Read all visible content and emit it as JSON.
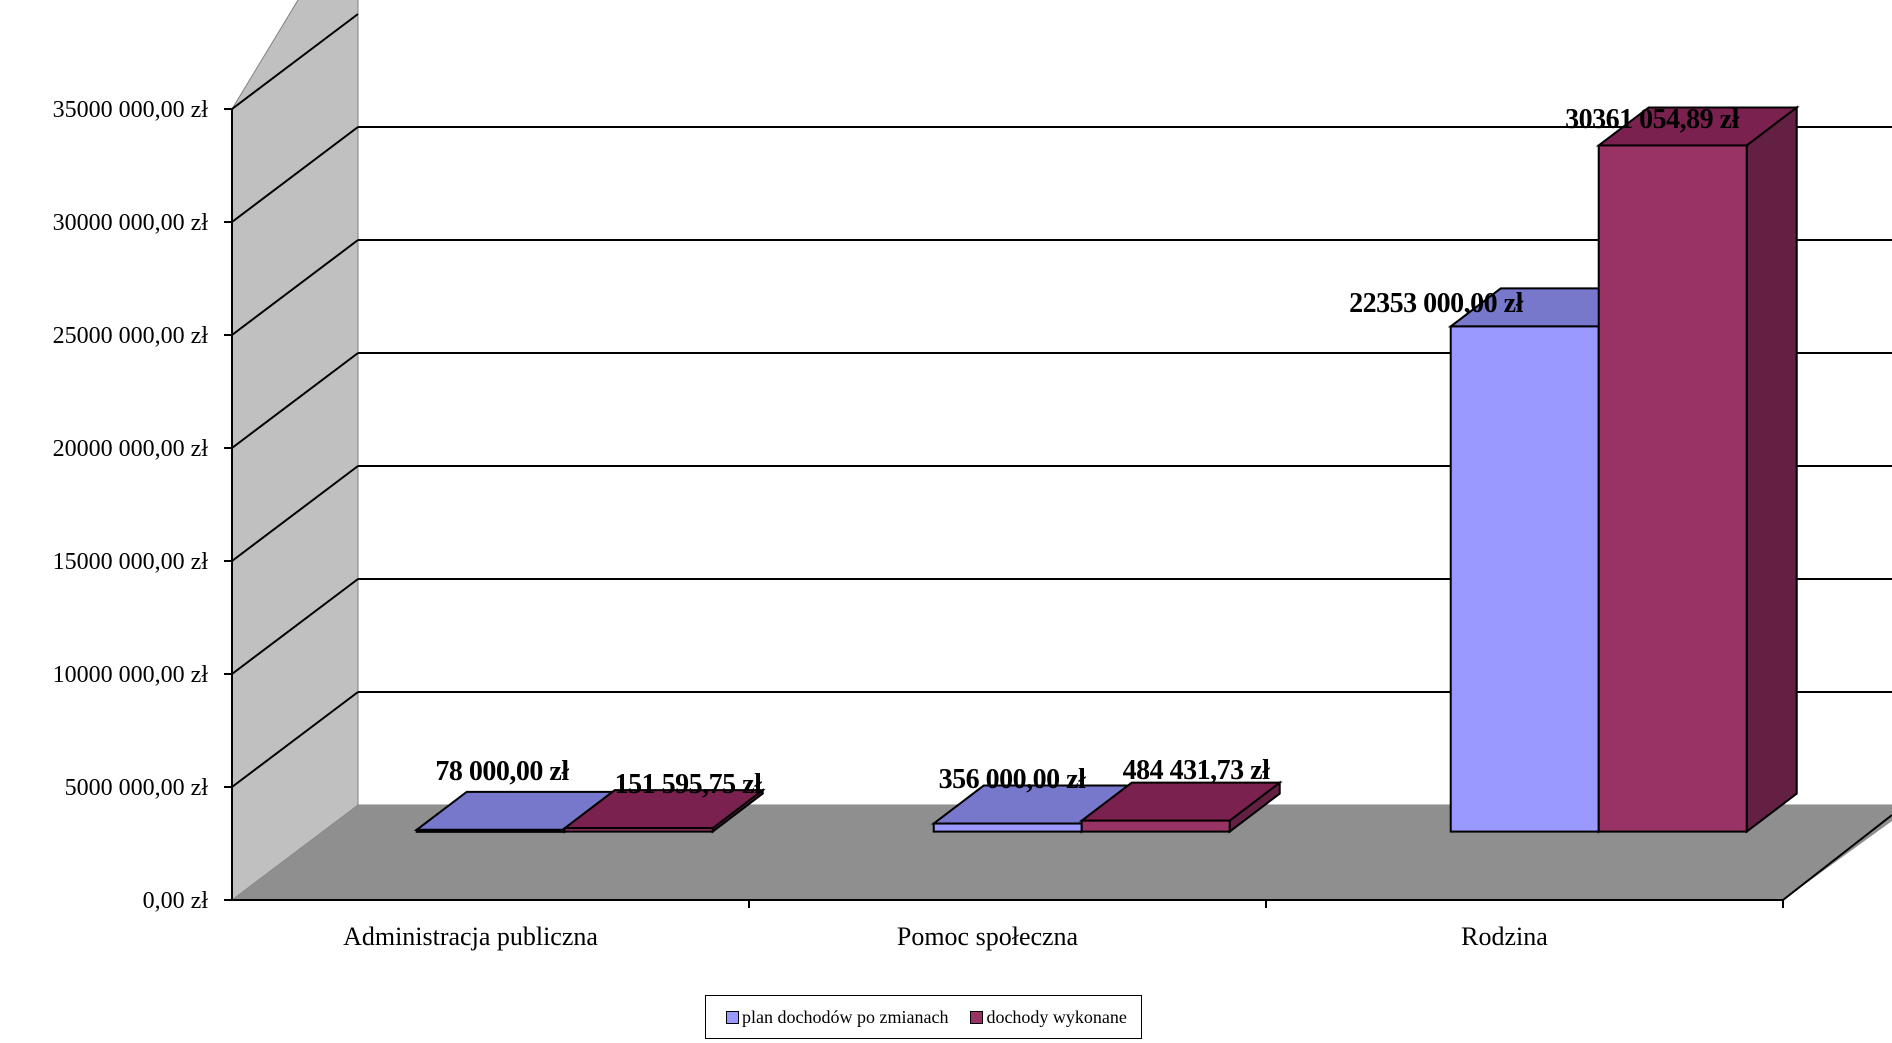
{
  "chart_data": {
    "type": "bar",
    "categories": [
      "Administracja publiczna",
      "Pomoc społeczna",
      "Rodzina"
    ],
    "series": [
      {
        "name": "plan dochodów po zmianach",
        "values": [
          78000.0,
          356000.0,
          22353000.0
        ],
        "labels": [
          "78 000,00 zł",
          "356 000,00 zł",
          "22353 000,00 zł"
        ],
        "color": "#9999FF"
      },
      {
        "name": "dochody wykonane",
        "values": [
          151595.75,
          484431.73,
          30361054.89
        ],
        "labels": [
          "151 595,75 zł",
          "484 431,73 zł",
          "30361 054,89 zł"
        ],
        "color": "#993366"
      }
    ],
    "ylim": [
      0,
      35000000
    ],
    "yticks": [
      0,
      5000000,
      10000000,
      15000000,
      20000000,
      25000000,
      30000000,
      35000000
    ],
    "ytick_labels": [
      "0,00 zł",
      "5000 000,00 zł",
      "10000 000,00 zł",
      "15000 000,00 zł",
      "20000 000,00 zł",
      "25000 000,00 zł",
      "30000 000,00 zł",
      "35000 000,00 zł"
    ],
    "grid": true,
    "three_d": true,
    "legend_position": "bottom",
    "title": "",
    "xlabel": "",
    "ylabel": ""
  }
}
